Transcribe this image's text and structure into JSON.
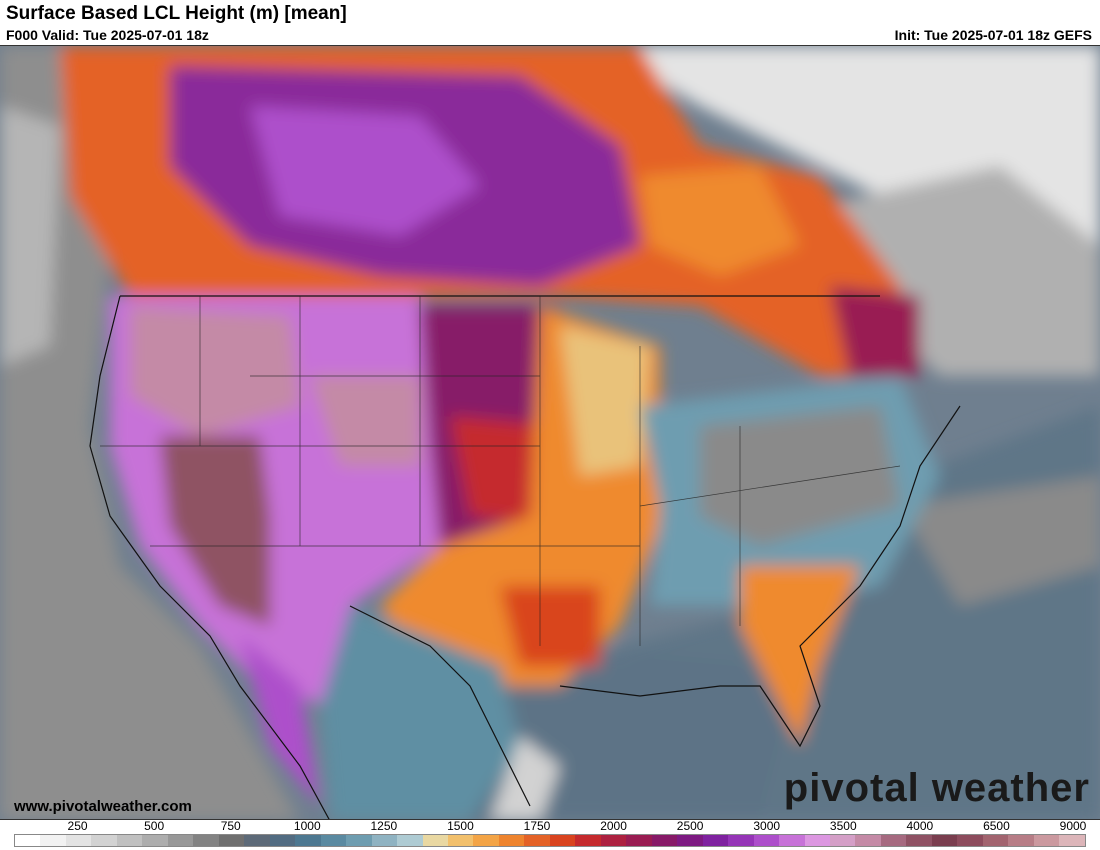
{
  "header": {
    "title": "Surface Based LCL Height (m) [mean]",
    "valid": "F000 Valid: Tue 2025-07-01 18z",
    "init": "Init: Tue 2025-07-01 18z GEFS"
  },
  "footer": {
    "website": "www.pivotalweather.com",
    "brand": "pivotal weather"
  },
  "colorbar": {
    "ticks": [
      "250",
      "500",
      "750",
      "1000",
      "1250",
      "1500",
      "1750",
      "2000",
      "2500",
      "3000",
      "3500",
      "4000",
      "6500",
      "9000"
    ],
    "colors": [
      "#ffffff",
      "#f2f2f2",
      "#e3e3e3",
      "#d2d2d2",
      "#c0c0c0",
      "#adadad",
      "#989898",
      "#838383",
      "#6f6f6f",
      "#5d6a78",
      "#526c82",
      "#4d7891",
      "#5a8aa1",
      "#6e9db0",
      "#8fb3c2",
      "#aecbd3",
      "#e9d8a2",
      "#f2c06c",
      "#f3a446",
      "#ee842e",
      "#e46227",
      "#d9441f",
      "#c52a2d",
      "#ad2140",
      "#991c52",
      "#871a68",
      "#7d1a82",
      "#7f22a0",
      "#9535b7",
      "#ad4fcb",
      "#c772d8",
      "#dc97e1",
      "#d49fc7",
      "#c48aa6",
      "#a66a80",
      "#8f5264",
      "#7a3e4f",
      "#8d4c5d",
      "#a2646f",
      "#b77d86",
      "#cb999f",
      "#dcb5b9"
    ]
  },
  "map": {
    "region": "CONUS",
    "palette": {
      "ocean": "#6f7f8f",
      "ocean_light": "#8a9aa8",
      "land_gray": "#9a9a9a",
      "canada_white": "#e9e9e9",
      "orange": "#ef8a2f",
      "red_orange": "#d9441f",
      "purple": "#8a2a9a",
      "lavender": "#c772d8",
      "mauve": "#a86a82",
      "teal": "#5f8fa3",
      "tan": "#e9c27a"
    }
  }
}
